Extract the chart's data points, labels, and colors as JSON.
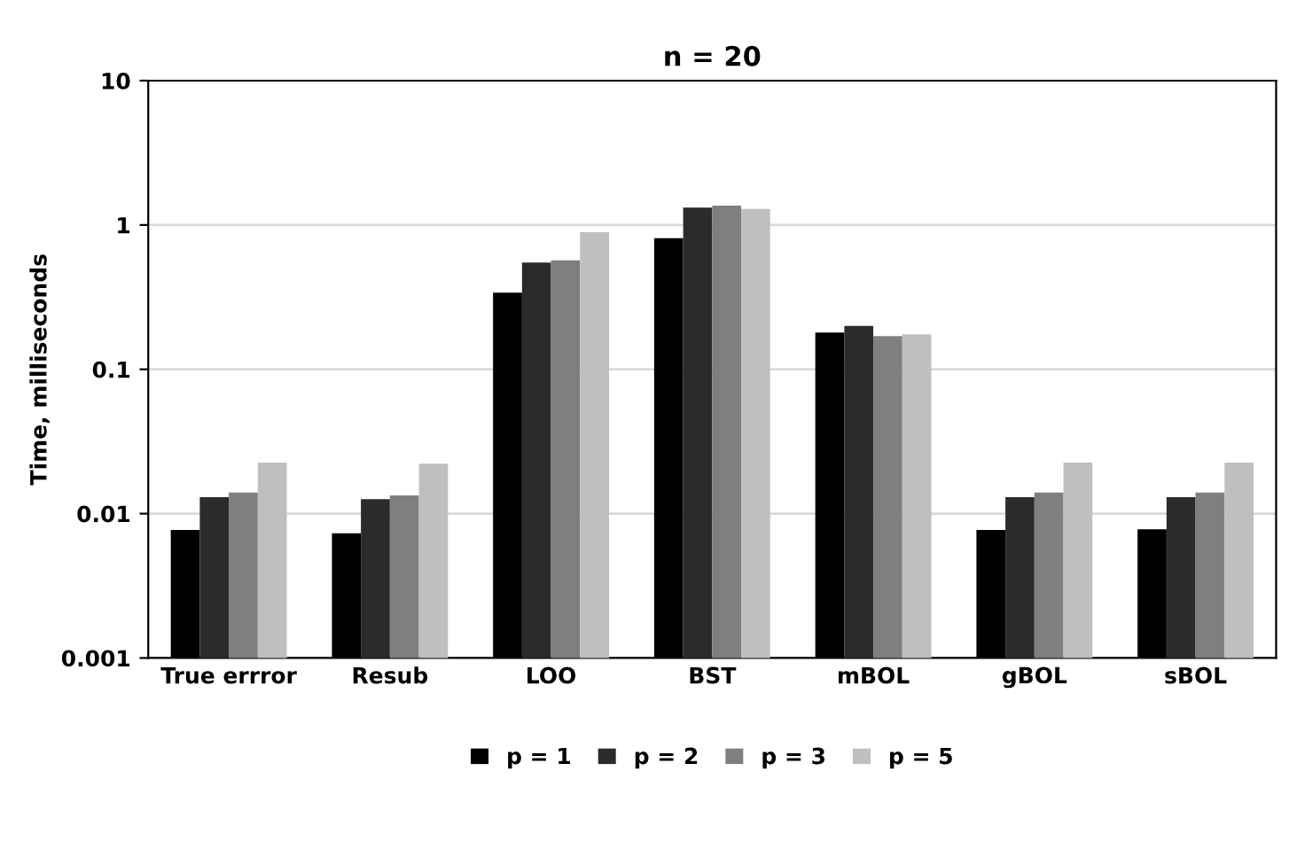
{
  "chart_data": {
    "type": "bar",
    "title": "n = 20",
    "ylabel": "Time, milliseconds",
    "categories": [
      "True errror",
      "Resub",
      "LOO",
      "BST",
      "mBOL",
      "gBOL",
      "sBOL"
    ],
    "series": [
      {
        "name": "p = 1",
        "color": "#000000",
        "values": [
          0.0077,
          0.0073,
          0.34,
          0.81,
          0.18,
          0.0077,
          0.0078
        ]
      },
      {
        "name": "p = 2",
        "color": "#2b2b2b",
        "values": [
          0.013,
          0.0126,
          0.55,
          1.32,
          0.2,
          0.013,
          0.013
        ]
      },
      {
        "name": "p = 3",
        "color": "#7f7f7f",
        "values": [
          0.014,
          0.0134,
          0.57,
          1.36,
          0.17,
          0.014,
          0.014
        ]
      },
      {
        "name": "p = 5",
        "color": "#bfbfbf",
        "values": [
          0.0226,
          0.0222,
          0.89,
          1.29,
          0.175,
          0.0226,
          0.0226
        ]
      }
    ],
    "log": true,
    "ylim": [
      0.001,
      10
    ],
    "yticks": [
      0.001,
      0.01,
      0.1,
      1,
      10
    ],
    "grid": "y",
    "legend": "bottom"
  }
}
